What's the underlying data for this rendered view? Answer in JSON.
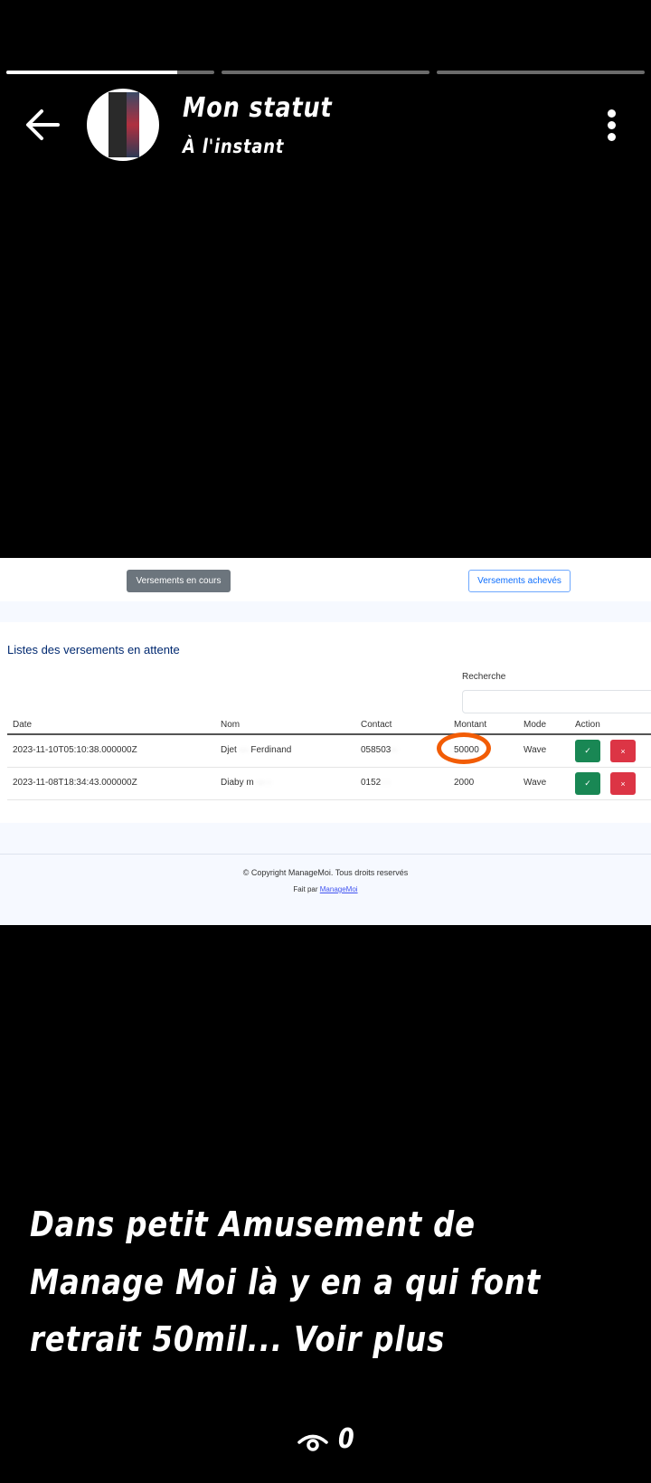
{
  "status": {
    "title": "Mon statut",
    "time": "À l'instant",
    "segments": 3,
    "current_progress": 0.8,
    "views": "0"
  },
  "web": {
    "tabs": {
      "active": "Versements en cours",
      "other": "Versements achevés"
    },
    "heading": "Listes des versements en attente",
    "search_label": "Recherche",
    "search_value": "",
    "columns": [
      "Date",
      "Nom",
      "Contact",
      "Montant",
      "Mode",
      "Action"
    ],
    "rows": [
      {
        "date": "2023-11-10T05:10:38.000000Z",
        "nom": "Djet",
        "nom_rest": "Ferdinand",
        "contact": "058503",
        "montant": "50000",
        "mode": "Wave",
        "highlighted": true
      },
      {
        "date": "2023-11-08T18:34:43.000000Z",
        "nom": "Diaby m",
        "nom_rest": "",
        "contact": "0152",
        "montant": "2000",
        "mode": "Wave",
        "highlighted": false
      }
    ],
    "approve_icon": "✓",
    "reject_icon": "×",
    "footer": {
      "copyright": "© Copyright ManageMoi. Tous droits reservés",
      "made_by": "Fait par",
      "made_by_link": "ManageMoi"
    },
    "colors": {
      "active_btn": "#6c757d",
      "outline_btn": "#0d6efd",
      "approve": "#198754",
      "reject": "#dc3545",
      "circle": "#f25c05"
    }
  },
  "caption": [
    "Dans petit Amusement de",
    "Manage Moi là y en a qui font",
    "retrait 50mil... Voir plus"
  ]
}
